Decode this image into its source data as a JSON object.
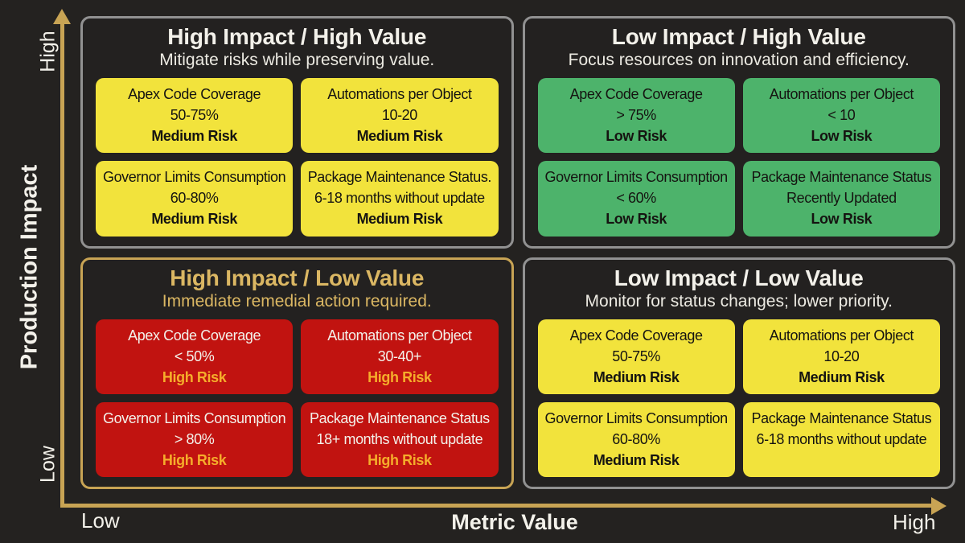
{
  "colors": {
    "background": "#242220",
    "quadrant-fill": "#232120",
    "border-gray": "#919191",
    "gold": "#c8a454",
    "gold-text": "#dbb763",
    "card-yellow": "#f2e33c",
    "card-green": "#4db36b",
    "card-red": "#c11310",
    "risk-gold": "#f5ad2b",
    "text-white": "#f3f1ea",
    "text-soft": "#eceae2",
    "text-dark": "#151411"
  },
  "axes": {
    "y_label": "Production Impact",
    "y_high": "High",
    "y_low": "Low",
    "x_label": "Metric Value",
    "x_low": "Low",
    "x_high": "High"
  },
  "quadrants": [
    {
      "title": "High Impact / High Value",
      "subtitle": "Mitigate risks while preserving value.",
      "risk_level": "Medium Risk",
      "card_color": "yellow",
      "border_color": "gray",
      "cards": [
        {
          "metric": "Apex Code Coverage",
          "value": "50-75%",
          "risk": "Medium Risk"
        },
        {
          "metric": "Automations per Object",
          "value": "10-20",
          "risk": "Medium Risk"
        },
        {
          "metric": "Governor Limits Consumption",
          "value": "60-80%",
          "risk": "Medium Risk"
        },
        {
          "metric": "Package Maintenance Status.",
          "value": "6-18 months without update",
          "risk": "Medium Risk"
        }
      ]
    },
    {
      "title": "Low Impact / High Value",
      "subtitle": "Focus resources on innovation and efficiency.",
      "risk_level": "Low Risk",
      "card_color": "green",
      "border_color": "gray",
      "cards": [
        {
          "metric": "Apex Code Coverage",
          "value": "> 75%",
          "risk": "Low Risk"
        },
        {
          "metric": "Automations per Object",
          "value": "< 10",
          "risk": "Low Risk"
        },
        {
          "metric": "Governor Limits Consumption",
          "value": "< 60%",
          "risk": "Low Risk"
        },
        {
          "metric": "Package Maintenance Status",
          "value": "Recently Updated",
          "risk": "Low Risk"
        }
      ]
    },
    {
      "title": "High Impact / Low Value",
      "subtitle": "Immediate remedial action required.",
      "risk_level": "High Risk",
      "card_color": "red",
      "border_color": "gold",
      "cards": [
        {
          "metric": "Apex Code Coverage",
          "value": "< 50%",
          "risk": "High Risk"
        },
        {
          "metric": "Automations per Object",
          "value": "30-40+",
          "risk": "High Risk"
        },
        {
          "metric": "Governor Limits Consumption",
          "value": "> 80%",
          "risk": "High Risk"
        },
        {
          "metric": "Package Maintenance Status",
          "value": "18+ months without update",
          "risk": "High Risk"
        }
      ]
    },
    {
      "title": "Low Impact / Low Value",
      "subtitle": "Monitor for status changes; lower priority.",
      "risk_level": "Medium Risk",
      "card_color": "yellow",
      "border_color": "gray",
      "cards": [
        {
          "metric": "Apex Code Coverage",
          "value": "50-75%",
          "risk": "Medium Risk"
        },
        {
          "metric": "Automations per Object",
          "value": "10-20",
          "risk": "Medium Risk"
        },
        {
          "metric": "Governor Limits Consumption",
          "value": "60-80%",
          "risk": "Medium Risk"
        },
        {
          "metric": "Package Maintenance Status",
          "value": "6-18 months without update",
          "risk": ""
        }
      ]
    }
  ]
}
